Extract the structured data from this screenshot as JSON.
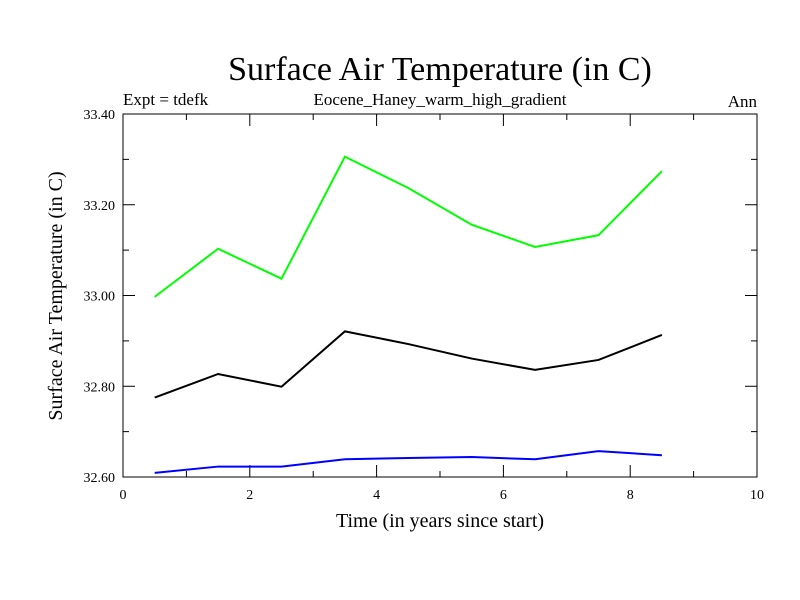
{
  "chart_data": {
    "type": "line",
    "title": "Surface Air Temperature (in C)",
    "subtitle_left": "Expt = tdefk",
    "subtitle_center": "Eocene_Haney_warm_high_gradient",
    "subtitle_right": "Ann",
    "xlabel": "Time (in years since start)",
    "ylabel": "Surface Air Temperature (in C)",
    "xlim": [
      0,
      10
    ],
    "ylim": [
      32.6,
      33.4
    ],
    "xticks": [
      0,
      2,
      4,
      6,
      8,
      10
    ],
    "xtick_labels": [
      "0",
      "2",
      "4",
      "6",
      "8",
      "10"
    ],
    "yticks": [
      32.6,
      32.8,
      33.0,
      33.2,
      33.4
    ],
    "ytick_labels": [
      "32.60",
      "32.80",
      "33.00",
      "33.20",
      "33.40"
    ],
    "grid": false,
    "x": [
      0.5,
      1.5,
      2.5,
      3.5,
      4.5,
      5.5,
      6.5,
      7.5,
      8.5
    ],
    "series": [
      {
        "color": "#00ff00",
        "values": [
          32.997,
          33.103,
          33.037,
          33.306,
          33.237,
          33.156,
          33.107,
          33.133,
          33.274
        ]
      },
      {
        "color": "#000000",
        "values": [
          32.775,
          32.827,
          32.799,
          32.921,
          32.893,
          32.861,
          32.836,
          32.858,
          32.913
        ]
      },
      {
        "color": "#0000ff",
        "values": [
          32.609,
          32.623,
          32.623,
          32.639,
          32.642,
          32.644,
          32.639,
          32.657,
          32.648
        ]
      }
    ]
  }
}
